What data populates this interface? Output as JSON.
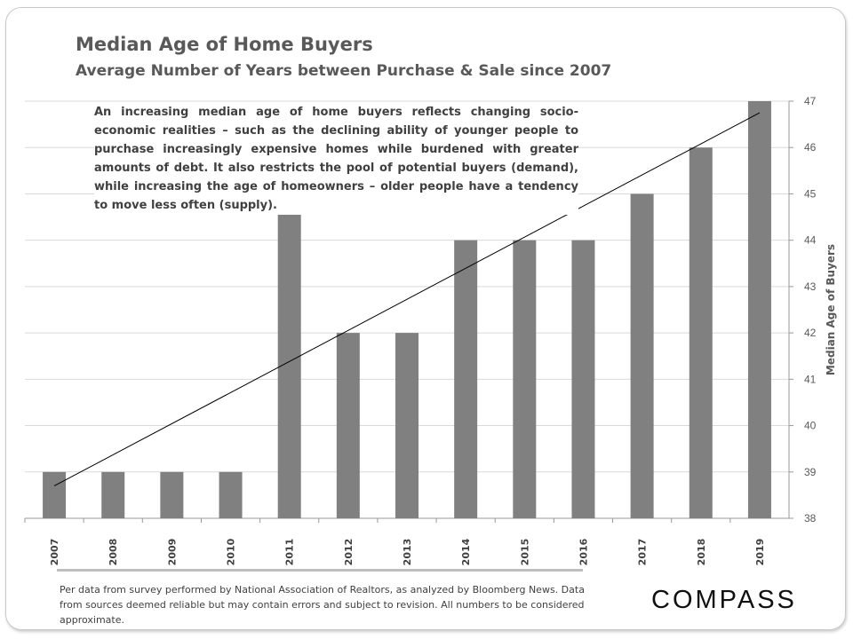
{
  "chart_data": {
    "type": "bar",
    "title": "Median Age of Home Buyers",
    "subtitle": "Average Number of Years between Purchase & Sale since 2007",
    "annotation": "An increasing median age of home buyers reflects changing socio-economic realities – such as the declining ability of younger people to purchase increasingly expensive homes while burdened with greater amounts of debt. It also restricts the pool of potential buyers (demand), while increasing the age of homeowners – older people have a tendency to move less often (supply).",
    "categories": [
      "2007",
      "2008",
      "2009",
      "2010",
      "2011",
      "2012",
      "2013",
      "2014",
      "2015",
      "2016",
      "2017",
      "2018",
      "2019"
    ],
    "values": [
      39,
      39,
      39,
      39,
      45,
      42,
      42,
      44,
      44,
      44,
      45,
      46,
      47
    ],
    "trendline": {
      "type": "linear",
      "start": 38.7,
      "end": 46.75
    },
    "ylabel": "Median Age of Buyers",
    "ylim": [
      38,
      47
    ],
    "yticks": [
      "38",
      "39",
      "40",
      "41",
      "42",
      "43",
      "44",
      "45",
      "46",
      "47"
    ],
    "y_axis_position": "right",
    "grid": true,
    "bar_color": "#808080"
  },
  "footer": {
    "source": "Per data from survey performed by National Association of Realtors, as analyzed by Bloomberg News. Data from sources deemed reliable but may contain errors and subject to revision. All numbers to be considered approximate.",
    "logo": "COMPASS"
  }
}
